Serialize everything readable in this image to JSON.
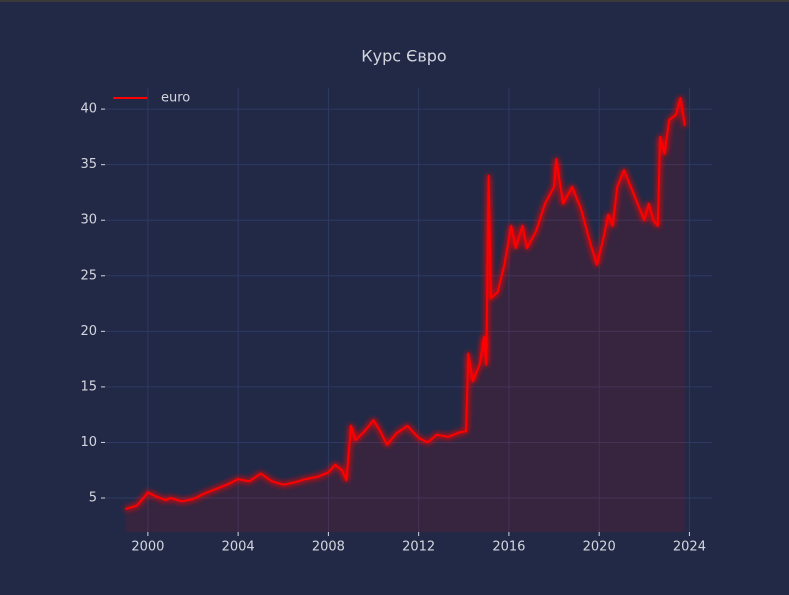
{
  "chart_data": {
    "type": "line",
    "title": "Курс Євро",
    "x": [
      1999.0,
      1999.5,
      1999.8,
      2000.0,
      2000.3,
      2000.8,
      2001.0,
      2001.5,
      2002.0,
      2002.5,
      2003.0,
      2003.5,
      2004.0,
      2004.5,
      2005.0,
      2005.5,
      2006.0,
      2006.5,
      2007.0,
      2007.5,
      2008.0,
      2008.3,
      2008.6,
      2008.8,
      2009.0,
      2009.2,
      2009.6,
      2010.0,
      2010.3,
      2010.6,
      2011.0,
      2011.5,
      2012.0,
      2012.4,
      2012.8,
      2013.3,
      2013.8,
      2014.1,
      2014.2,
      2014.4,
      2014.7,
      2014.9,
      2015.0,
      2015.1,
      2015.2,
      2015.5,
      2015.8,
      2016.1,
      2016.3,
      2016.6,
      2016.8,
      2017.2,
      2017.6,
      2018.0,
      2018.1,
      2018.4,
      2018.8,
      2019.2,
      2019.6,
      2019.9,
      2020.2,
      2020.4,
      2020.6,
      2020.8,
      2021.1,
      2021.4,
      2021.8,
      2022.0,
      2022.2,
      2022.4,
      2022.6,
      2022.7,
      2022.9,
      2023.1,
      2023.4,
      2023.6,
      2023.8
    ],
    "series": [
      {
        "name": "euro",
        "color": "#ff0000",
        "values": [
          4.0,
          4.3,
          5.0,
          5.5,
          5.2,
          4.8,
          5.0,
          4.7,
          4.9,
          5.4,
          5.8,
          6.2,
          6.7,
          6.5,
          7.2,
          6.5,
          6.2,
          6.4,
          6.7,
          6.9,
          7.3,
          8.0,
          7.5,
          6.6,
          11.5,
          10.2,
          11.0,
          12.0,
          11.0,
          9.8,
          10.8,
          11.5,
          10.4,
          10.0,
          10.7,
          10.5,
          10.9,
          11.0,
          18.0,
          15.5,
          17.0,
          19.5,
          17.0,
          34.0,
          23.0,
          23.5,
          26.0,
          29.5,
          27.5,
          29.5,
          27.5,
          29.0,
          31.5,
          33.0,
          35.5,
          31.5,
          33.0,
          31.0,
          28.0,
          26.0,
          28.5,
          30.5,
          29.5,
          33.0,
          34.5,
          33.0,
          31.0,
          30.0,
          31.5,
          30.0,
          29.5,
          37.5,
          36.0,
          39.0,
          39.5,
          41.0,
          38.5
        ]
      }
    ],
    "xlim": [
      1998.1,
      2025.0
    ],
    "xticks": [
      2000,
      2004,
      2008,
      2012,
      2016,
      2020,
      2024
    ],
    "ylim": [
      1.94,
      41.9
    ],
    "yticks": [
      5,
      10,
      15,
      20,
      25,
      30,
      35,
      40
    ],
    "grid": true,
    "fill": true,
    "legend": "upper left"
  }
}
